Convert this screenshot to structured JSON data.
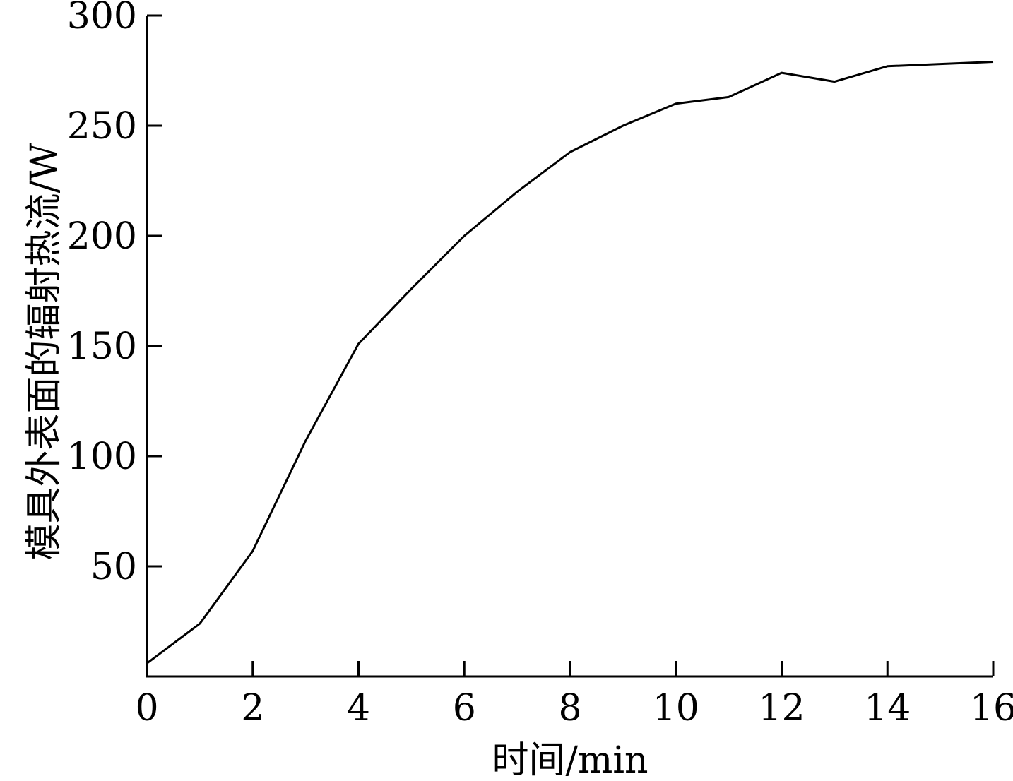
{
  "chart_data": {
    "type": "line",
    "xlabel": "时间/min",
    "ylabel": "模具外表面的辐射热流/W",
    "xlim": [
      0,
      16
    ],
    "ylim": [
      0,
      300
    ],
    "x_ticks": [
      0,
      2,
      4,
      6,
      8,
      10,
      12,
      14,
      16
    ],
    "y_ticks": [
      50,
      100,
      150,
      200,
      250,
      300
    ],
    "grid": false,
    "series": [
      {
        "x": [
          0,
          1,
          2,
          3,
          4,
          5,
          6,
          7,
          8,
          9,
          10,
          11,
          12,
          13,
          14,
          15,
          16
        ],
        "y": [
          6,
          24,
          57,
          107,
          151,
          176,
          200,
          220,
          238,
          250,
          260,
          263,
          274,
          270,
          277,
          278,
          279
        ]
      }
    ]
  }
}
